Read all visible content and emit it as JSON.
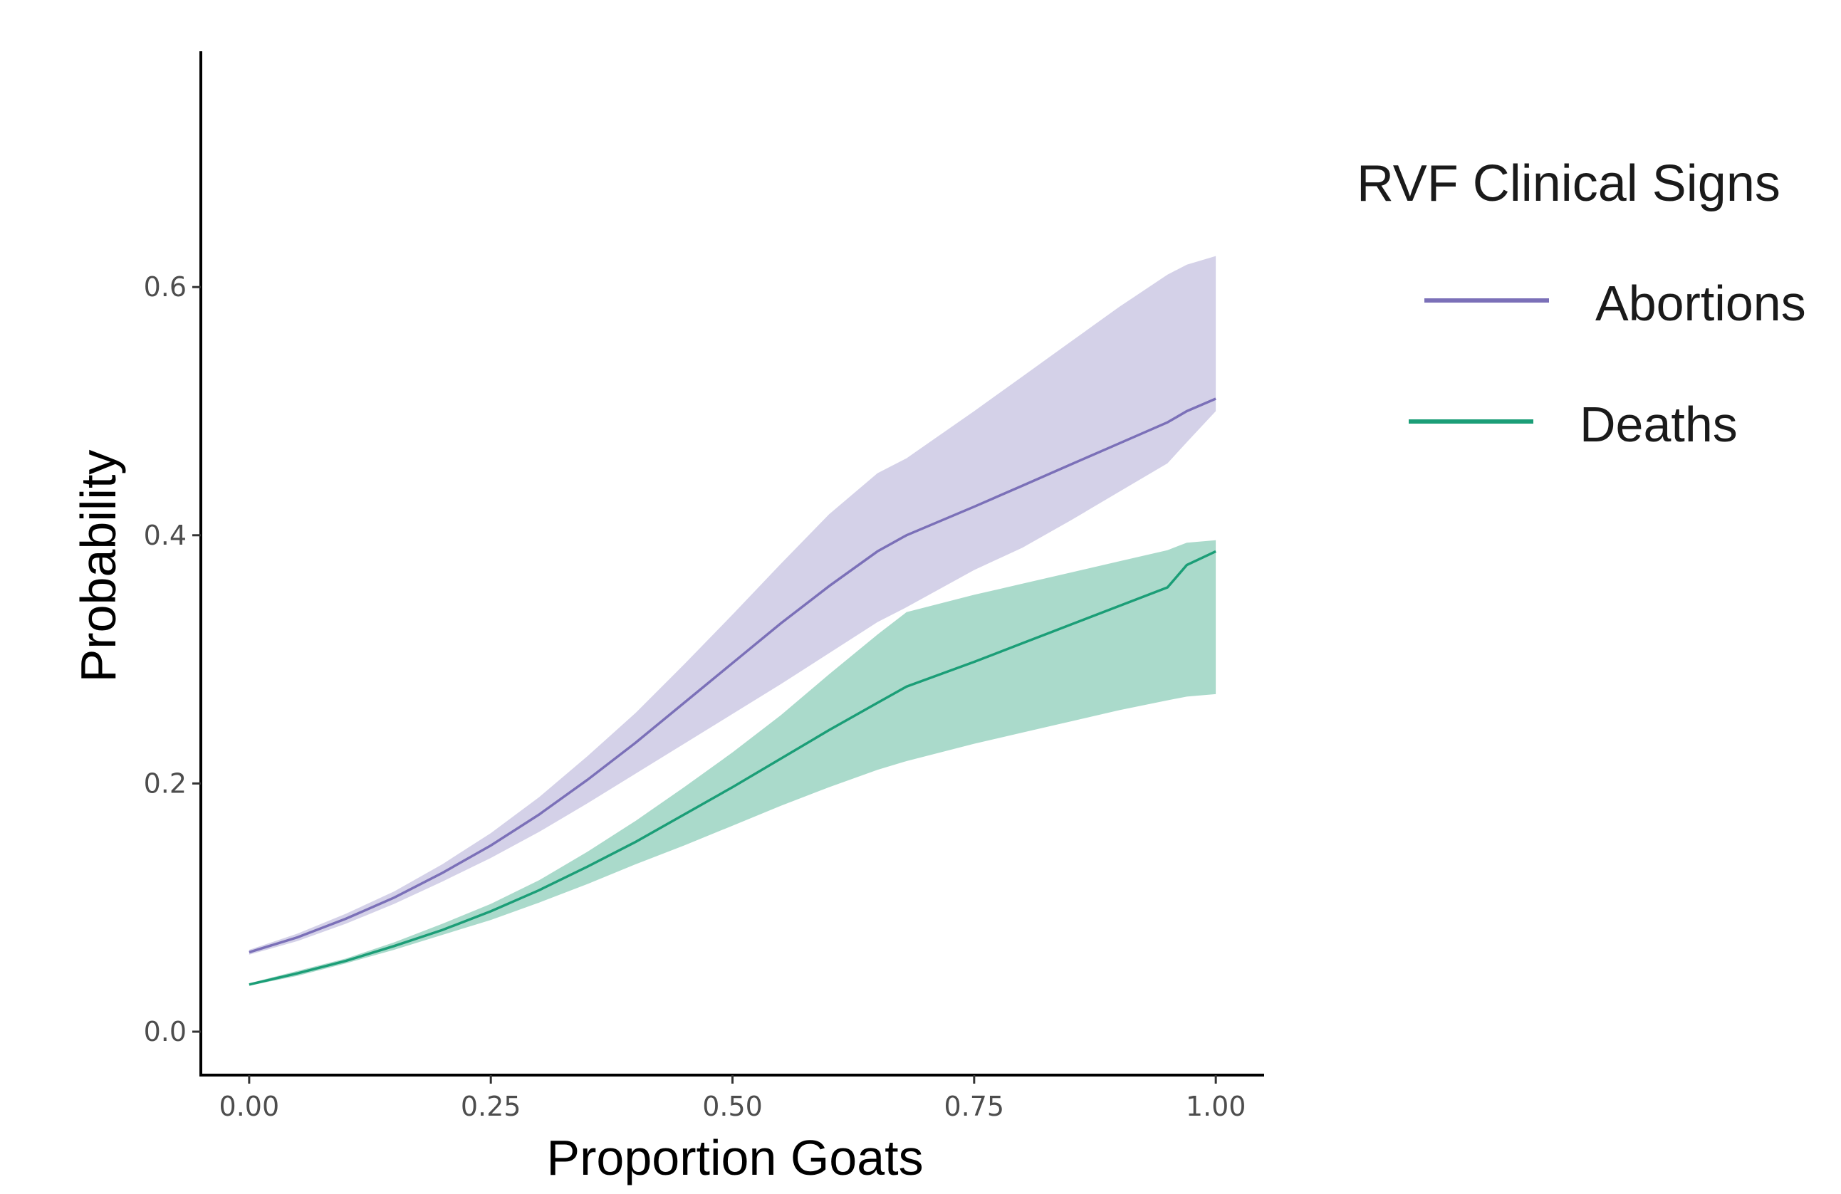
{
  "chart_data": {
    "type": "line",
    "x_label": "Proportion Goats",
    "y_label": "Probability",
    "x_range": [
      -0.05,
      1.05
    ],
    "y_range": [
      -0.035,
      0.79
    ],
    "x_ticks": [
      {
        "value": 0.0,
        "label": "0.00"
      },
      {
        "value": 0.25,
        "label": "0.25"
      },
      {
        "value": 0.5,
        "label": "0.50"
      },
      {
        "value": 0.75,
        "label": "0.75"
      },
      {
        "value": 1.0,
        "label": "1.00"
      }
    ],
    "y_ticks": [
      {
        "value": 0.0,
        "label": "0.0"
      },
      {
        "value": 0.2,
        "label": "0.2"
      },
      {
        "value": 0.4,
        "label": "0.4"
      },
      {
        "value": 0.6,
        "label": "0.6"
      }
    ],
    "grid": false,
    "legend": {
      "title": "RVF Clinical Signs",
      "position": "right",
      "entries": [
        "Abortions",
        "Deaths"
      ]
    },
    "series": [
      {
        "name": "Abortions",
        "color": "#7b70b8",
        "band_color": "#c5c2e0",
        "x": [
          0.0,
          0.05,
          0.1,
          0.15,
          0.2,
          0.25,
          0.3,
          0.35,
          0.4,
          0.45,
          0.5,
          0.55,
          0.6,
          0.65,
          0.68,
          0.75,
          0.8,
          0.85,
          0.9,
          0.95,
          0.97,
          1.0
        ],
        "y": [
          0.064,
          0.076,
          0.091,
          0.108,
          0.128,
          0.15,
          0.175,
          0.203,
          0.233,
          0.265,
          0.297,
          0.329,
          0.359,
          0.387,
          0.4,
          0.423,
          0.44,
          0.457,
          0.474,
          0.491,
          0.5,
          0.51
        ],
        "lower": [
          0.062,
          0.073,
          0.087,
          0.103,
          0.121,
          0.14,
          0.161,
          0.184,
          0.208,
          0.232,
          0.256,
          0.28,
          0.305,
          0.33,
          0.342,
          0.372,
          0.39,
          0.412,
          0.435,
          0.458,
          0.475,
          0.5
        ],
        "upper": [
          0.066,
          0.079,
          0.095,
          0.113,
          0.135,
          0.16,
          0.189,
          0.222,
          0.257,
          0.296,
          0.336,
          0.377,
          0.417,
          0.45,
          0.462,
          0.5,
          0.528,
          0.556,
          0.584,
          0.61,
          0.618,
          0.625
        ]
      },
      {
        "name": "Deaths",
        "color": "#1b9e77",
        "band_color": "#8dcdb9",
        "x": [
          0.0,
          0.05,
          0.1,
          0.15,
          0.2,
          0.25,
          0.3,
          0.35,
          0.4,
          0.45,
          0.5,
          0.55,
          0.6,
          0.65,
          0.68,
          0.75,
          0.8,
          0.85,
          0.9,
          0.95,
          0.97,
          1.0
        ],
        "y": [
          0.038,
          0.047,
          0.057,
          0.069,
          0.082,
          0.097,
          0.114,
          0.133,
          0.153,
          0.175,
          0.197,
          0.22,
          0.243,
          0.265,
          0.278,
          0.298,
          0.313,
          0.328,
          0.343,
          0.358,
          0.376,
          0.387
        ],
        "lower": [
          0.037,
          0.045,
          0.055,
          0.066,
          0.078,
          0.09,
          0.104,
          0.119,
          0.135,
          0.15,
          0.166,
          0.182,
          0.197,
          0.211,
          0.218,
          0.232,
          0.241,
          0.25,
          0.259,
          0.267,
          0.27,
          0.272
        ],
        "upper": [
          0.039,
          0.049,
          0.059,
          0.072,
          0.087,
          0.103,
          0.122,
          0.145,
          0.17,
          0.197,
          0.225,
          0.255,
          0.288,
          0.32,
          0.338,
          0.352,
          0.361,
          0.37,
          0.379,
          0.388,
          0.394,
          0.396
        ]
      }
    ]
  }
}
